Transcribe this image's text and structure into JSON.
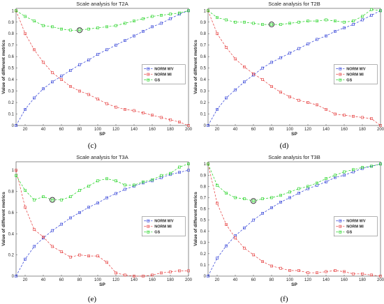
{
  "figure": {
    "captions": [
      "(c)",
      "(d)",
      "(e)",
      "(f)"
    ]
  },
  "colors": {
    "wv": "#2b3bd6",
    "mi": "#e53b3b",
    "gs": "#1fd21f",
    "marker": "#222222"
  },
  "chart_data": [
    {
      "type": "line",
      "title": "Scale analysis for T2A",
      "xlabel": "SP",
      "ylabel": "Value of different metrics",
      "xlim": [
        10,
        200
      ],
      "ylim": [
        0,
        1.02
      ],
      "xticks": [
        20,
        40,
        60,
        80,
        100,
        120,
        140,
        160,
        180,
        200
      ],
      "yticks": [
        0,
        0.1,
        0.2,
        0.3,
        0.4,
        0.5,
        0.6,
        0.7,
        0.8,
        0.9,
        1
      ],
      "legend": "center-right",
      "x": [
        10,
        20,
        30,
        40,
        50,
        60,
        70,
        80,
        90,
        100,
        110,
        120,
        130,
        140,
        150,
        160,
        170,
        180,
        190,
        200
      ],
      "series": [
        {
          "name": "NORM WV",
          "values": [
            0.0,
            0.14,
            0.24,
            0.32,
            0.38,
            0.43,
            0.48,
            0.53,
            0.57,
            0.62,
            0.66,
            0.7,
            0.74,
            0.78,
            0.82,
            0.86,
            0.89,
            0.93,
            0.97,
            1.0
          ]
        },
        {
          "name": "NORM MI",
          "values": [
            1.0,
            0.8,
            0.66,
            0.55,
            0.46,
            0.4,
            0.34,
            0.3,
            0.27,
            0.23,
            0.19,
            0.16,
            0.14,
            0.13,
            0.11,
            0.09,
            0.07,
            0.05,
            0.03,
            0.0
          ]
        },
        {
          "name": "GS",
          "values": [
            1.0,
            0.95,
            0.91,
            0.87,
            0.86,
            0.84,
            0.83,
            0.83,
            0.84,
            0.85,
            0.86,
            0.87,
            0.89,
            0.91,
            0.93,
            0.95,
            0.96,
            0.97,
            0.98,
            1.0
          ]
        }
      ],
      "marker": {
        "x": 80,
        "y": 0.83
      }
    },
    {
      "type": "line",
      "title": "Scale analysis for T2B",
      "xlabel": "SP",
      "ylabel": "Value of different metrics",
      "xlim": [
        10,
        200
      ],
      "ylim": [
        0,
        1.02
      ],
      "xticks": [
        20,
        40,
        60,
        80,
        100,
        120,
        140,
        160,
        180,
        200
      ],
      "yticks": [
        0,
        0.1,
        0.2,
        0.3,
        0.4,
        0.5,
        0.6,
        0.7,
        0.8,
        0.9,
        1
      ],
      "legend": "center-right",
      "x": [
        10,
        20,
        30,
        40,
        50,
        60,
        70,
        80,
        90,
        100,
        110,
        120,
        130,
        140,
        150,
        160,
        170,
        180,
        190,
        200
      ],
      "series": [
        {
          "name": "NORM WV",
          "values": [
            0.0,
            0.14,
            0.24,
            0.31,
            0.38,
            0.44,
            0.5,
            0.55,
            0.59,
            0.63,
            0.67,
            0.71,
            0.75,
            0.78,
            0.82,
            0.85,
            0.88,
            0.92,
            0.96,
            1.0
          ]
        },
        {
          "name": "NORM MI",
          "values": [
            1.0,
            0.8,
            0.68,
            0.58,
            0.51,
            0.45,
            0.4,
            0.34,
            0.29,
            0.25,
            0.22,
            0.2,
            0.18,
            0.14,
            0.1,
            0.09,
            0.08,
            0.07,
            0.06,
            0.0
          ]
        },
        {
          "name": "GS",
          "values": [
            1.0,
            0.94,
            0.92,
            0.9,
            0.9,
            0.89,
            0.88,
            0.88,
            0.88,
            0.89,
            0.9,
            0.91,
            0.91,
            0.92,
            0.91,
            0.9,
            0.91,
            0.95,
            1.01,
            1.0
          ]
        }
      ],
      "marker": {
        "x": 80,
        "y": 0.88
      }
    },
    {
      "type": "line",
      "title": "Scale analysis for T3A",
      "xlabel": "SP",
      "ylabel": "Value of different metrics",
      "xlim": [
        10,
        200
      ],
      "ylim": [
        0,
        1.08
      ],
      "xticks": [
        20,
        40,
        60,
        80,
        100,
        120,
        140,
        160,
        180,
        200
      ],
      "yticks": [
        0,
        0.2,
        0.4,
        0.6,
        0.8,
        1
      ],
      "legend": "center-right",
      "x": [
        10,
        20,
        30,
        40,
        50,
        60,
        70,
        80,
        90,
        100,
        110,
        120,
        130,
        140,
        150,
        160,
        170,
        180,
        190,
        200
      ],
      "series": [
        {
          "name": "NORM WV",
          "values": [
            0.0,
            0.16,
            0.28,
            0.36,
            0.43,
            0.49,
            0.55,
            0.6,
            0.65,
            0.69,
            0.74,
            0.78,
            0.82,
            0.85,
            0.88,
            0.9,
            0.93,
            0.96,
            0.98,
            1.0
          ]
        },
        {
          "name": "NORM MI",
          "values": [
            1.0,
            0.65,
            0.44,
            0.37,
            0.28,
            0.23,
            0.18,
            0.2,
            0.19,
            0.19,
            0.13,
            0.03,
            0.01,
            0.0,
            0.0,
            0.01,
            0.03,
            0.04,
            0.05,
            0.05
          ]
        },
        {
          "name": "GS",
          "values": [
            0.95,
            0.81,
            0.72,
            0.75,
            0.72,
            0.72,
            0.75,
            0.81,
            0.85,
            0.9,
            0.92,
            0.9,
            0.86,
            0.86,
            0.89,
            0.91,
            0.95,
            0.97,
            1.03,
            1.06
          ]
        }
      ],
      "marker": {
        "x": 50,
        "y": 0.72
      }
    },
    {
      "type": "line",
      "title": "Scale analysis for T3B",
      "xlabel": "SP",
      "ylabel": "Value of different metrics",
      "xlim": [
        10,
        200
      ],
      "ylim": [
        0,
        1.02
      ],
      "xticks": [
        20,
        40,
        60,
        80,
        100,
        120,
        140,
        160,
        180,
        200
      ],
      "yticks": [
        0,
        0.1,
        0.2,
        0.3,
        0.4,
        0.5,
        0.6,
        0.7,
        0.8,
        0.9,
        1
      ],
      "legend": "center-right",
      "x": [
        10,
        20,
        30,
        40,
        50,
        60,
        70,
        80,
        90,
        100,
        110,
        120,
        130,
        140,
        150,
        160,
        170,
        180,
        190,
        200
      ],
      "series": [
        {
          "name": "NORM WV",
          "values": [
            0.0,
            0.16,
            0.27,
            0.36,
            0.43,
            0.5,
            0.56,
            0.61,
            0.66,
            0.7,
            0.74,
            0.78,
            0.81,
            0.84,
            0.88,
            0.9,
            0.93,
            0.96,
            0.98,
            1.0
          ]
        },
        {
          "name": "NORM MI",
          "values": [
            1.0,
            0.65,
            0.46,
            0.34,
            0.25,
            0.19,
            0.13,
            0.09,
            0.07,
            0.05,
            0.05,
            0.03,
            0.03,
            0.04,
            0.05,
            0.04,
            0.02,
            0.02,
            0.01,
            0.0
          ]
        },
        {
          "name": "GS",
          "values": [
            1.0,
            0.81,
            0.74,
            0.7,
            0.69,
            0.67,
            0.69,
            0.7,
            0.72,
            0.75,
            0.78,
            0.8,
            0.83,
            0.87,
            0.9,
            0.93,
            0.95,
            0.97,
            0.98,
            1.0
          ]
        }
      ],
      "marker": {
        "x": 60,
        "y": 0.67
      }
    }
  ]
}
